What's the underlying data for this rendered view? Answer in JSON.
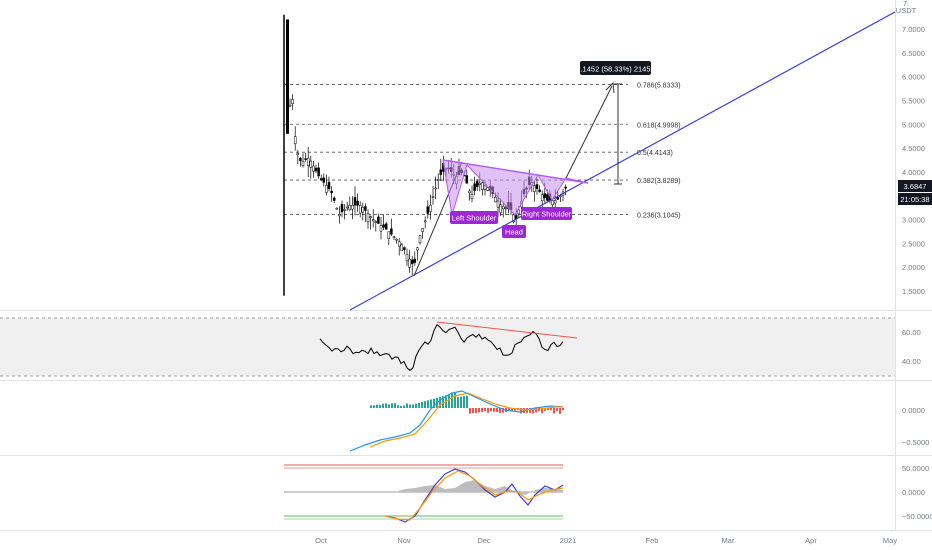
{
  "price_axis": {
    "currency": "USDT",
    "ticks": [
      "7.0000",
      "6.5000",
      "6.0000",
      "5.5000",
      "5.0000",
      "4.5000",
      "4.0000",
      "3.5000",
      "3.0000",
      "2.5000",
      "2.0000",
      "1.5000"
    ],
    "ticks_top_partial": "7.",
    "current_price": "3.6847",
    "countdown": "21:05:38"
  },
  "fib_levels": [
    {
      "label": "0.786(5.8333)",
      "value": 5.8333
    },
    {
      "label": "0.618(4.9998)",
      "value": 4.9998
    },
    {
      "label": "0.5(4.4143)",
      "value": 4.4143
    },
    {
      "label": "0.382(3.8289)",
      "value": 3.8289
    },
    {
      "label": "0.236(3.1045)",
      "value": 3.1045
    }
  ],
  "measure_label": "2.1452 (58.33%) 21452",
  "pattern_labels": {
    "left_shoulder": "Left Shoulder",
    "head": "Head",
    "right_shoulder": "Right Shoulder"
  },
  "rsi_axis": {
    "ticks": [
      "60.00",
      "40.00"
    ]
  },
  "macd_axis": {
    "ticks": [
      "0.0000",
      "−0.5000"
    ]
  },
  "osc_axis": {
    "ticks": [
      "50.0000",
      "0.0000",
      "−50.0000"
    ]
  },
  "time_axis": [
    "Oct",
    "Nov",
    "Dec",
    "2021",
    "Feb",
    "Mar",
    "Apr",
    "May"
  ],
  "colors": {
    "candle": "#000000",
    "trendline": "#3f3fd9",
    "pattern_fill": "#c98ff0",
    "pattern_line": "#b45cf0",
    "label_bg": "#9c27d6",
    "rsi_divergence": "#ef5350",
    "macd_line": "#2196f3",
    "signal_line": "#ff9800",
    "hist_up": "#26a69a",
    "hist_down": "#ef5350"
  }
}
